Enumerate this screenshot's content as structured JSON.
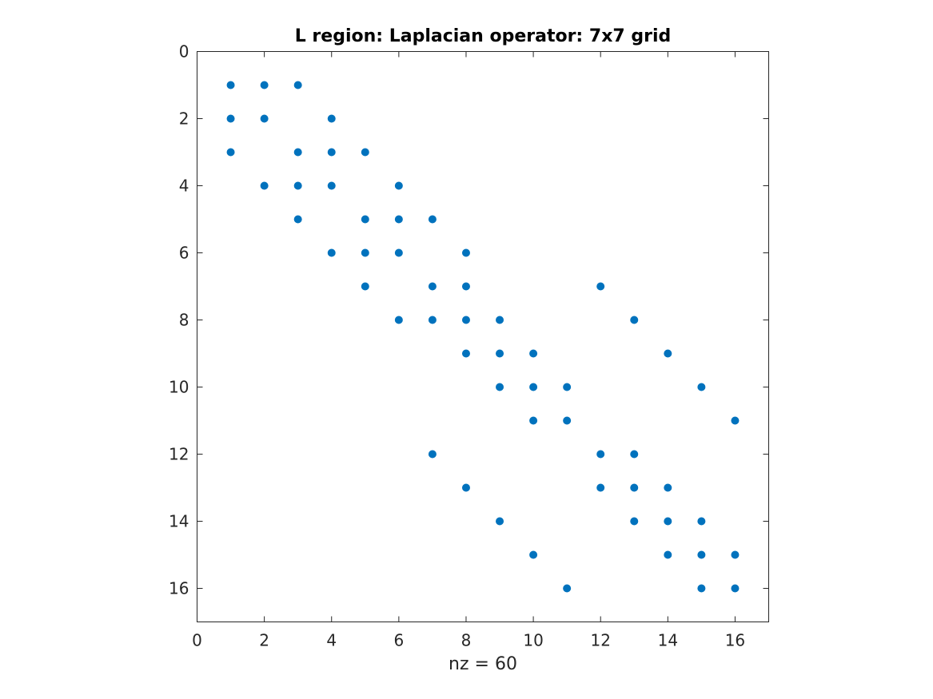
{
  "chart_data": {
    "type": "scatter",
    "title": "L region: Laplacian operator: 7x7 grid",
    "xlabel": "nz = 60",
    "ylabel": "",
    "xlim": [
      0,
      17
    ],
    "ylim": [
      0,
      17
    ],
    "y_axis_direction": "reversed",
    "x_ticks": [
      0,
      2,
      4,
      6,
      8,
      10,
      12,
      14,
      16
    ],
    "y_ticks": [
      0,
      2,
      4,
      6,
      8,
      10,
      12,
      14,
      16
    ],
    "grid": false,
    "marker_color": "#0072BD",
    "points": [
      [
        1,
        1
      ],
      [
        2,
        1
      ],
      [
        3,
        1
      ],
      [
        1,
        2
      ],
      [
        2,
        2
      ],
      [
        4,
        2
      ],
      [
        1,
        3
      ],
      [
        3,
        3
      ],
      [
        4,
        3
      ],
      [
        5,
        3
      ],
      [
        2,
        4
      ],
      [
        3,
        4
      ],
      [
        4,
        4
      ],
      [
        6,
        4
      ],
      [
        3,
        5
      ],
      [
        5,
        5
      ],
      [
        6,
        5
      ],
      [
        7,
        5
      ],
      [
        4,
        6
      ],
      [
        5,
        6
      ],
      [
        6,
        6
      ],
      [
        8,
        6
      ],
      [
        5,
        7
      ],
      [
        7,
        7
      ],
      [
        8,
        7
      ],
      [
        12,
        7
      ],
      [
        6,
        8
      ],
      [
        7,
        8
      ],
      [
        8,
        8
      ],
      [
        9,
        8
      ],
      [
        13,
        8
      ],
      [
        8,
        9
      ],
      [
        9,
        9
      ],
      [
        10,
        9
      ],
      [
        14,
        9
      ],
      [
        9,
        10
      ],
      [
        10,
        10
      ],
      [
        11,
        10
      ],
      [
        15,
        10
      ],
      [
        10,
        11
      ],
      [
        11,
        11
      ],
      [
        16,
        11
      ],
      [
        7,
        12
      ],
      [
        12,
        12
      ],
      [
        13,
        12
      ],
      [
        8,
        13
      ],
      [
        12,
        13
      ],
      [
        13,
        13
      ],
      [
        14,
        13
      ],
      [
        9,
        14
      ],
      [
        13,
        14
      ],
      [
        14,
        14
      ],
      [
        15,
        14
      ],
      [
        10,
        15
      ],
      [
        14,
        15
      ],
      [
        15,
        15
      ],
      [
        16,
        15
      ],
      [
        11,
        16
      ],
      [
        15,
        16
      ],
      [
        16,
        16
      ]
    ]
  }
}
